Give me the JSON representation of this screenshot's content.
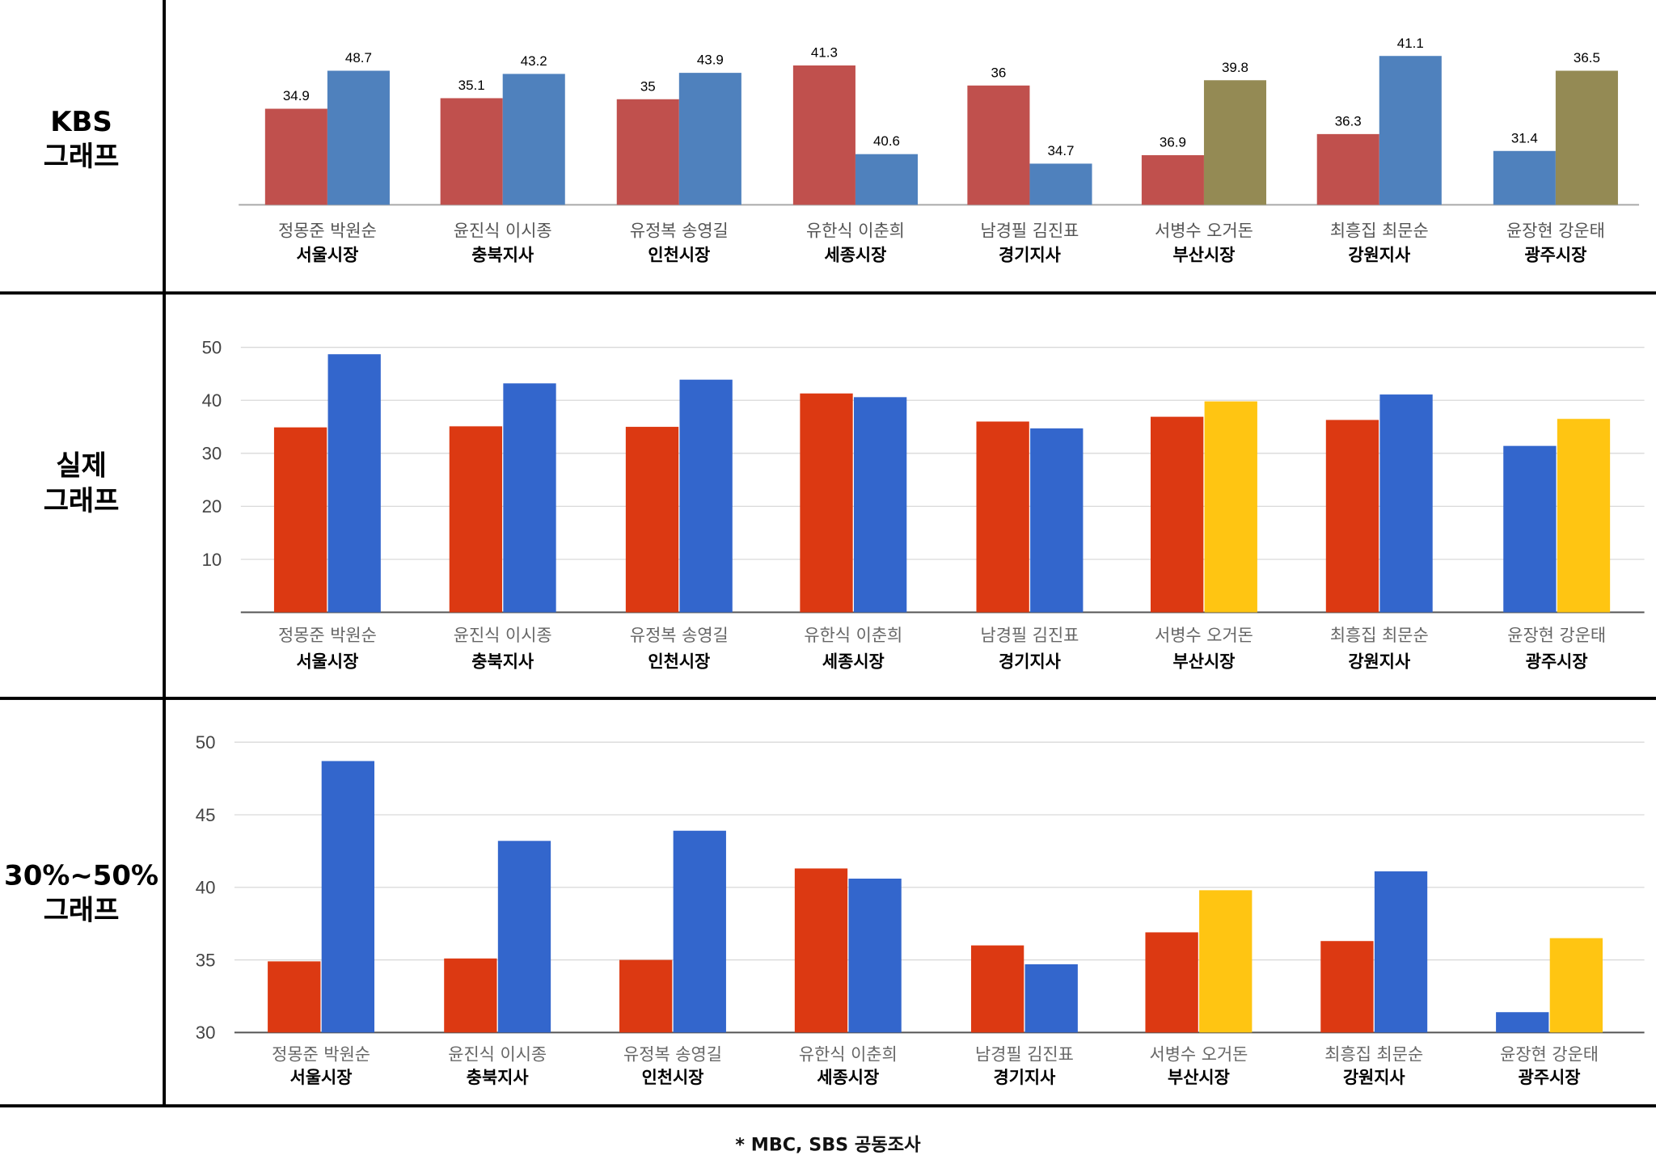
{
  "sections": [
    {
      "label_line1": "KBS",
      "label_line2": "그래프"
    },
    {
      "label_line1": "실제",
      "label_line2": "그래프"
    },
    {
      "label_line1": "30%~50%",
      "label_line2": "그래프"
    }
  ],
  "footnote": "* MBC, SBS 공동조사",
  "palettes": {
    "kbs": {
      "red": "#c0504d",
      "blue": "#4f81bd",
      "yellow": "#948a54"
    },
    "actual": {
      "red": "#dc3912",
      "blue": "#3366cc",
      "yellow": "#ffc512"
    }
  },
  "chart_data": [
    {
      "type": "bar",
      "title": "",
      "categories": [
        {
          "candidates": "정몽준 박원순",
          "region": "서울시장"
        },
        {
          "candidates": "윤진식 이시종",
          "region": "충북지사"
        },
        {
          "candidates": "유정복 송영길",
          "region": "인천시장"
        },
        {
          "candidates": "유한식 이춘희",
          "region": "세종시장"
        },
        {
          "candidates": "남경필 김진표",
          "region": "경기지사"
        },
        {
          "candidates": "서병수 오거돈",
          "region": "부산시장"
        },
        {
          "candidates": "최흥집 최문순",
          "region": "강원지사"
        },
        {
          "candidates": "윤장현 강운태",
          "region": "광주시장"
        }
      ],
      "values": [
        [
          34.9,
          48.7
        ],
        [
          35.1,
          43.2
        ],
        [
          35,
          43.9
        ],
        [
          41.3,
          40.6
        ],
        [
          36,
          34.7
        ],
        [
          36.9,
          39.8
        ],
        [
          36.3,
          41.1
        ],
        [
          31.4,
          36.5
        ]
      ],
      "colors": [
        [
          "red",
          "blue"
        ],
        [
          "red",
          "blue"
        ],
        [
          "red",
          "blue"
        ],
        [
          "red",
          "blue"
        ],
        [
          "red",
          "blue"
        ],
        [
          "red",
          "yellow"
        ],
        [
          "red",
          "blue"
        ],
        [
          "blue",
          "yellow"
        ]
      ],
      "data_labels": true,
      "y_axis": "none (bar heights not to scale)",
      "grid": false
    },
    {
      "type": "bar",
      "title": "",
      "categories": "same as chart 1",
      "values": [
        [
          34.9,
          48.7
        ],
        [
          35.1,
          43.2
        ],
        [
          35,
          43.9
        ],
        [
          41.3,
          40.6
        ],
        [
          36,
          34.7
        ],
        [
          36.9,
          39.8
        ],
        [
          36.3,
          41.1
        ],
        [
          31.4,
          36.5
        ]
      ],
      "colors": [
        [
          "red",
          "blue"
        ],
        [
          "red",
          "blue"
        ],
        [
          "red",
          "blue"
        ],
        [
          "red",
          "blue"
        ],
        [
          "red",
          "blue"
        ],
        [
          "red",
          "yellow"
        ],
        [
          "red",
          "blue"
        ],
        [
          "blue",
          "yellow"
        ]
      ],
      "ylim": [
        0,
        50
      ],
      "yticks": [
        "10",
        "20",
        "30",
        "40",
        "50"
      ],
      "grid": true
    },
    {
      "type": "bar",
      "title": "",
      "categories": "same as chart 1",
      "values": [
        [
          34.9,
          48.7
        ],
        [
          35.1,
          43.2
        ],
        [
          35,
          43.9
        ],
        [
          41.3,
          40.6
        ],
        [
          36,
          34.7
        ],
        [
          36.9,
          39.8
        ],
        [
          36.3,
          41.1
        ],
        [
          31.4,
          36.5
        ]
      ],
      "colors": [
        [
          "red",
          "blue"
        ],
        [
          "red",
          "blue"
        ],
        [
          "red",
          "blue"
        ],
        [
          "red",
          "blue"
        ],
        [
          "red",
          "blue"
        ],
        [
          "red",
          "yellow"
        ],
        [
          "red",
          "blue"
        ],
        [
          "blue",
          "yellow"
        ]
      ],
      "ylim": [
        30,
        50
      ],
      "yticks": [
        "30",
        "35",
        "40",
        "45",
        "50"
      ],
      "grid": true
    }
  ]
}
